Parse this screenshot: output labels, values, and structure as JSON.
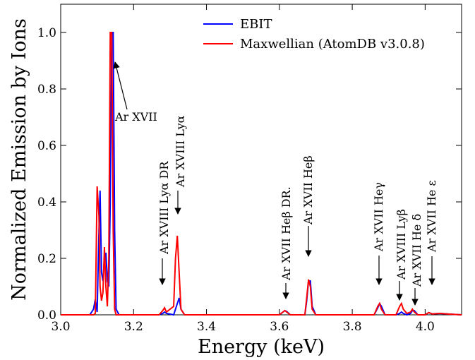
{
  "chart_data": {
    "type": "line",
    "xlabel": "Energy (keV)",
    "ylabel": "Normalized Emission by Ions",
    "xlim": [
      3.0,
      4.1
    ],
    "ylim": [
      0,
      1.1
    ],
    "xticks": [
      {
        "value": 3,
        "label": "3.0"
      },
      3.2,
      3.4,
      3.6,
      3.8,
      {
        "value": 4,
        "label": "4.0"
      }
    ],
    "yticks": [
      {
        "value": 0,
        "label": "0.0"
      },
      0.2,
      0.4,
      0.6,
      0.8,
      {
        "value": 1,
        "label": "1.0"
      }
    ],
    "legend": "upper center",
    "x": [
      3.0,
      3.08,
      3.09,
      3.095,
      3.1,
      3.105,
      3.108,
      3.112,
      3.116,
      3.12,
      3.124,
      3.128,
      3.132,
      3.136,
      3.14,
      3.144,
      3.148,
      3.152,
      3.16,
      3.27,
      3.28,
      3.285,
      3.29,
      3.31,
      3.315,
      3.32,
      3.325,
      3.33,
      3.34,
      3.6,
      3.61,
      3.615,
      3.62,
      3.63,
      3.67,
      3.675,
      3.68,
      3.685,
      3.69,
      3.7,
      3.86,
      3.87,
      3.875,
      3.88,
      3.89,
      3.92,
      3.93,
      3.935,
      3.94,
      3.95,
      3.96,
      3.965,
      3.97,
      3.98,
      4.0,
      4.01,
      4.02,
      4.04,
      4.06,
      4.1
    ],
    "series": [
      {
        "name": "EBIT",
        "color": "#0000ff",
        "values": [
          0,
          0,
          0.02,
          0.055,
          0.01,
          0.3,
          0.44,
          0.15,
          0.12,
          0.2,
          0.22,
          0.12,
          0.1,
          0.4,
          1.0,
          1.0,
          0.3,
          0.02,
          0,
          0,
          0.005,
          0.01,
          0.005,
          0,
          0.02,
          0.04,
          0.06,
          0.02,
          0,
          0,
          0.01,
          0.015,
          0.012,
          0,
          0,
          0.05,
          0.12,
          0.12,
          0.03,
          0,
          0,
          0.025,
          0.04,
          0.03,
          0,
          0,
          0.005,
          0.01,
          0.005,
          0,
          0.005,
          0.015,
          0.015,
          0,
          0,
          0.008,
          0.003,
          0.005,
          0.003,
          0
        ]
      },
      {
        "name": "Maxwellian (AtomDB v3.0.8)",
        "color": "#ff0000",
        "values": [
          0,
          0,
          0,
          0.005,
          0.455,
          0.35,
          0.1,
          0.05,
          0.08,
          0.24,
          0.1,
          0.03,
          0.2,
          1.0,
          1.0,
          0.3,
          0.02,
          0,
          0,
          0,
          0.015,
          0.025,
          0.01,
          0.03,
          0.2,
          0.28,
          0.15,
          0.02,
          0,
          0,
          0.01,
          0.015,
          0.01,
          0,
          0,
          0.06,
          0.125,
          0.1,
          0.02,
          0,
          0,
          0.03,
          0.04,
          0.02,
          0,
          0,
          0.03,
          0.04,
          0.02,
          0.005,
          0.01,
          0.02,
          0.01,
          0,
          0,
          0.008,
          0.003,
          0.005,
          0.003,
          0
        ]
      }
    ],
    "annotations": [
      "Ar XVII",
      "Ar XVIII Lyα DR",
      "Ar XVIII Lyα",
      "Ar XVII  Heβ DR.",
      "Ar XVII Heβ",
      "Ar XVII Heγ",
      "Ar XVIII Lyβ",
      "Ar XVII He δ",
      "Ar XVII He ε"
    ]
  }
}
